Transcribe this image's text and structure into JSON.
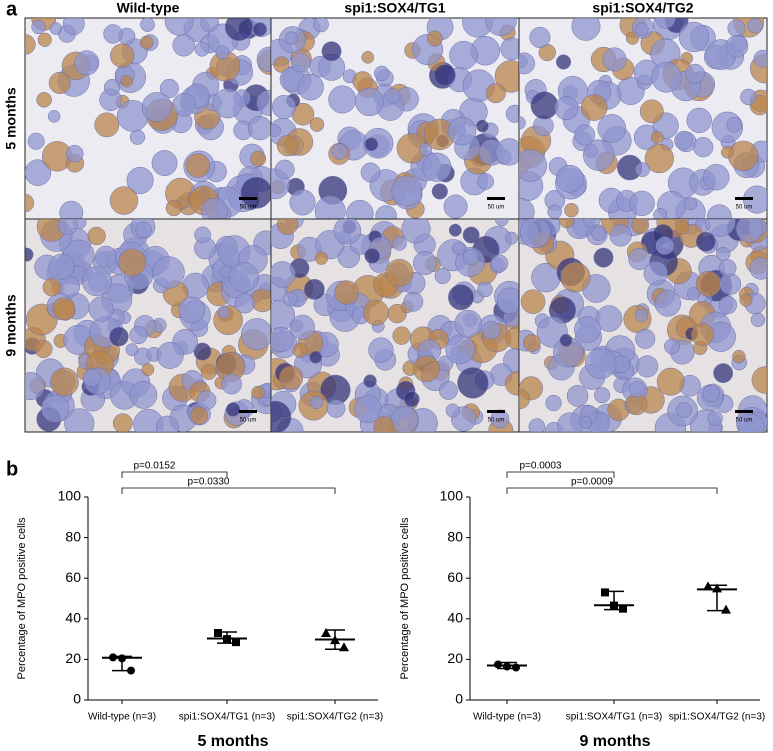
{
  "figure": {
    "panel_a_label": "a",
    "panel_b_label": "b",
    "micrographs": {
      "columns": [
        "Wild-type",
        "spi1:SOX4/TG1",
        "spi1:SOX4/TG2"
      ],
      "rows": [
        "5 months",
        "9 months"
      ],
      "scale_bar": "50 um"
    }
  },
  "chart_data": [
    {
      "type": "dot",
      "title": "5 months",
      "y_label": "Percentage of MPO positive cells",
      "categories": [
        "Wild-type (n=3)",
        "spi1:SOX4/TG1 (n=3)",
        "spi1:SOX4/TG2 (n=3)"
      ],
      "groups": [
        {
          "points": [
            21,
            20.5,
            14.5
          ],
          "median": 20.8,
          "range": [
            14.5,
            21.5
          ]
        },
        {
          "points": [
            33,
            30,
            28.5
          ],
          "median": 30.3,
          "range": [
            28,
            33.5
          ]
        },
        {
          "points": [
            33,
            29.5,
            26
          ],
          "median": 29.8,
          "range": [
            25,
            34.5
          ]
        }
      ],
      "color": "#000000",
      "ylim": [
        0,
        100
      ],
      "yticks": [
        0,
        20,
        40,
        60,
        80,
        100
      ],
      "comparisons": [
        "p=0.0152",
        "p=0.0330"
      ]
    },
    {
      "type": "dot",
      "title": "9 months",
      "y_label": "Percentage of MPO positive cells",
      "categories": [
        "Wild-type (n=3)",
        "spi1:SOX4/TG1 (n=3)",
        "spi1:SOX4/TG2 (n=3)"
      ],
      "groups": [
        {
          "points": [
            17.5,
            16.5,
            16
          ],
          "median": 17,
          "range": [
            15.5,
            18.5
          ]
        },
        {
          "points": [
            53,
            46.5,
            45
          ],
          "median": 46.7,
          "range": [
            44.5,
            53.5
          ]
        },
        {
          "points": [
            56,
            55,
            44.5
          ],
          "median": 54.5,
          "range": [
            44,
            56.5
          ]
        }
      ],
      "color": "#000000",
      "ylim": [
        0,
        100
      ],
      "yticks": [
        0,
        20,
        40,
        60,
        80,
        100
      ],
      "comparisons": [
        "p=0.0003",
        "p=0.0009"
      ]
    }
  ]
}
